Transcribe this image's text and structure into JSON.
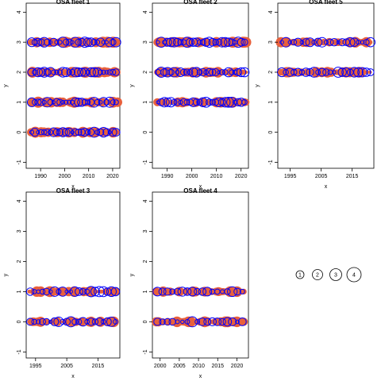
{
  "colors": {
    "obs": "#e8603c",
    "exp": "#0000ff",
    "axis": "#000000"
  },
  "legend": {
    "labels": [
      "1",
      "2",
      "3",
      "4"
    ]
  },
  "chart_data": [
    {
      "type": "scatter",
      "title": "OSA fleet 1",
      "xlabel": "x",
      "ylabel": "y",
      "xlim": [
        1984,
        2023
      ],
      "ylim": [
        -1.2,
        4.3
      ],
      "xticks": [
        1990,
        2000,
        2010,
        2020
      ],
      "yticks": [
        -1,
        0,
        1,
        2,
        3,
        4
      ],
      "rows": [
        0,
        1,
        2,
        3
      ],
      "x_start": 1986,
      "x_end": 2022,
      "grid": false
    },
    {
      "type": "scatter",
      "title": "OSA fleet 2",
      "xlabel": "x",
      "ylabel": "y",
      "xlim": [
        1984,
        2023
      ],
      "ylim": [
        -1.2,
        4.3
      ],
      "xticks": [
        1990,
        2000,
        2010,
        2020
      ],
      "yticks": [
        -1,
        0,
        1,
        2,
        3,
        4
      ],
      "rows": [
        1,
        2,
        3
      ],
      "x_start": 1986,
      "x_end": 2022,
      "grid": false
    },
    {
      "type": "scatter",
      "title": "OSA fleet 5",
      "xlabel": "x",
      "ylabel": "y",
      "xlim": [
        1991,
        2022
      ],
      "ylim": [
        -1.2,
        4.3
      ],
      "xticks": [
        1995,
        2005,
        2015
      ],
      "yticks": [
        -1,
        0,
        1,
        2,
        3,
        4
      ],
      "rows": [
        2,
        3
      ],
      "x_start": 1992,
      "x_end": 2021,
      "grid": false
    },
    {
      "type": "scatter",
      "title": "OSA fleet 3",
      "xlabel": "x",
      "ylabel": "y",
      "xlim": [
        1992,
        2022
      ],
      "ylim": [
        -1.2,
        4.3
      ],
      "xticks": [
        1995,
        2005,
        2015
      ],
      "yticks": [
        -1,
        0,
        1,
        2,
        3,
        4
      ],
      "rows": [
        0,
        1
      ],
      "x_start": 1993,
      "x_end": 2021,
      "grid": false
    },
    {
      "type": "scatter",
      "title": "OSA fleet 4",
      "xlabel": "x",
      "ylabel": "y",
      "xlim": [
        1998,
        2023
      ],
      "ylim": [
        -1.2,
        4.3
      ],
      "xticks": [
        2000,
        2005,
        2010,
        2015,
        2020
      ],
      "yticks": [
        -1,
        0,
        1,
        2,
        3,
        4
      ],
      "rows": [
        0,
        1
      ],
      "x_start": 1999,
      "x_end": 2022,
      "grid": false
    }
  ]
}
